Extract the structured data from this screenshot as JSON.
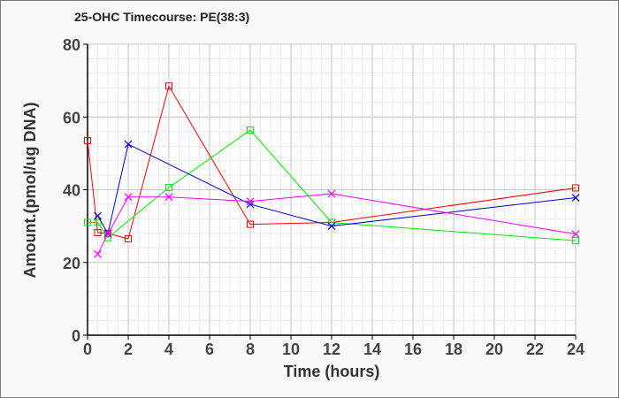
{
  "chart_data": {
    "type": "line",
    "title": "25-OHC Timecourse: PE(38:3)",
    "xlabel": "Time (hours)",
    "ylabel": "Amount.(pmol/ug DNA)",
    "xlim": [
      0,
      24
    ],
    "ylim": [
      0,
      80
    ],
    "xticks": [
      0,
      2,
      4,
      6,
      8,
      10,
      12,
      14,
      16,
      18,
      20,
      22,
      24
    ],
    "yticks": [
      0,
      20,
      40,
      60,
      80
    ],
    "grid": true,
    "series": [
      {
        "name": "red",
        "color": "#ff0000",
        "marker": "square",
        "x": [
          0,
          0.5,
          1,
          2,
          4,
          8,
          12,
          24
        ],
        "y": [
          53.5,
          28.2,
          28,
          26.5,
          68.5,
          30.5,
          31,
          40.5
        ]
      },
      {
        "name": "green",
        "color": "#00ee00",
        "marker": "square",
        "x": [
          0,
          0.5,
          1,
          4,
          8,
          12,
          24
        ],
        "y": [
          31,
          31,
          26.8,
          40.6,
          56.4,
          31,
          26
        ]
      },
      {
        "name": "blue",
        "color": "#0000dd",
        "marker": "x",
        "x": [
          0.5,
          1,
          2,
          8,
          12,
          24
        ],
        "y": [
          32.8,
          28,
          52.5,
          36,
          30,
          37.8
        ]
      },
      {
        "name": "magenta",
        "color": "#ff00ff",
        "marker": "x",
        "x": [
          0.5,
          1,
          2,
          4,
          8,
          12,
          24
        ],
        "y": [
          22.3,
          27.8,
          38,
          38,
          36.8,
          38.9,
          27.8
        ]
      }
    ]
  }
}
